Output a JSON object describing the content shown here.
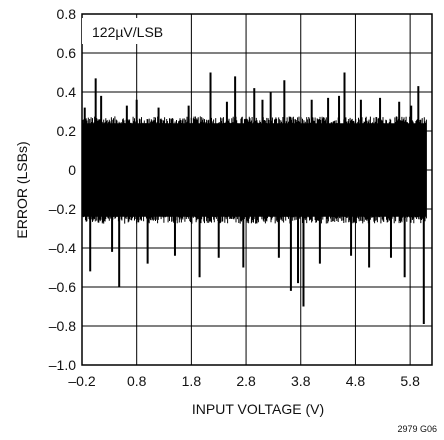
{
  "chart_data": {
    "type": "line",
    "title": "",
    "xlabel": "INPUT VOLTAGE (V)",
    "ylabel": "ERROR (LSBs)",
    "xlim": [
      -0.2,
      6.2
    ],
    "ylim": [
      -1.0,
      0.8
    ],
    "x_ticks": [
      -0.2,
      0.8,
      1.8,
      2.8,
      3.8,
      4.8,
      5.8
    ],
    "x_tick_labels": [
      "–0.2",
      "0.8",
      "1.8",
      "2.8",
      "3.8",
      "4.8",
      "5.8"
    ],
    "y_ticks": [
      0.8,
      0.6,
      0.4,
      0.2,
      0,
      -0.2,
      -0.4,
      -0.6,
      -0.8,
      -1.0
    ],
    "y_tick_labels": [
      "0.8",
      "0.6",
      "0.4",
      "0.2",
      "0",
      "–0.2",
      "–0.4",
      "–0.6",
      "–0.8",
      "–1.0"
    ],
    "grid": true,
    "annotation": "122µV/LSB",
    "figure_code": "2979 G06",
    "series": [
      {
        "color": "#000000",
        "band": [
          -0.25,
          0.25
        ],
        "x_range": [
          -0.2,
          6.1
        ],
        "spikes": [
          {
            "x": -0.15,
            "y": 0.32
          },
          {
            "x": -0.05,
            "y": -0.52
          },
          {
            "x": 0.05,
            "y": 0.47
          },
          {
            "x": 0.15,
            "y": 0.38
          },
          {
            "x": 0.35,
            "y": -0.42
          },
          {
            "x": 0.48,
            "y": -0.6
          },
          {
            "x": 0.62,
            "y": 0.33
          },
          {
            "x": 0.8,
            "y": 0.36
          },
          {
            "x": 1.0,
            "y": -0.48
          },
          {
            "x": 1.2,
            "y": 0.32
          },
          {
            "x": 1.5,
            "y": -0.44
          },
          {
            "x": 1.75,
            "y": 0.33
          },
          {
            "x": 1.95,
            "y": -0.55
          },
          {
            "x": 2.15,
            "y": 0.5
          },
          {
            "x": 2.3,
            "y": -0.45
          },
          {
            "x": 2.45,
            "y": 0.35
          },
          {
            "x": 2.6,
            "y": 0.48
          },
          {
            "x": 2.75,
            "y": -0.5
          },
          {
            "x": 2.95,
            "y": 0.42
          },
          {
            "x": 3.1,
            "y": 0.36
          },
          {
            "x": 3.25,
            "y": 0.4
          },
          {
            "x": 3.4,
            "y": -0.45
          },
          {
            "x": 3.5,
            "y": 0.46
          },
          {
            "x": 3.62,
            "y": -0.62
          },
          {
            "x": 3.75,
            "y": -0.58
          },
          {
            "x": 3.85,
            "y": -0.7
          },
          {
            "x": 4.0,
            "y": 0.36
          },
          {
            "x": 4.15,
            "y": -0.48
          },
          {
            "x": 4.3,
            "y": 0.37
          },
          {
            "x": 4.5,
            "y": 0.38
          },
          {
            "x": 4.6,
            "y": 0.5
          },
          {
            "x": 4.72,
            "y": -0.44
          },
          {
            "x": 4.9,
            "y": 0.36
          },
          {
            "x": 5.05,
            "y": -0.5
          },
          {
            "x": 5.25,
            "y": 0.37
          },
          {
            "x": 5.45,
            "y": -0.45
          },
          {
            "x": 5.6,
            "y": 0.35
          },
          {
            "x": 5.7,
            "y": -0.55
          },
          {
            "x": 5.82,
            "y": 0.33
          },
          {
            "x": 5.95,
            "y": 0.43
          },
          {
            "x": 6.05,
            "y": -0.79
          }
        ]
      }
    ]
  }
}
